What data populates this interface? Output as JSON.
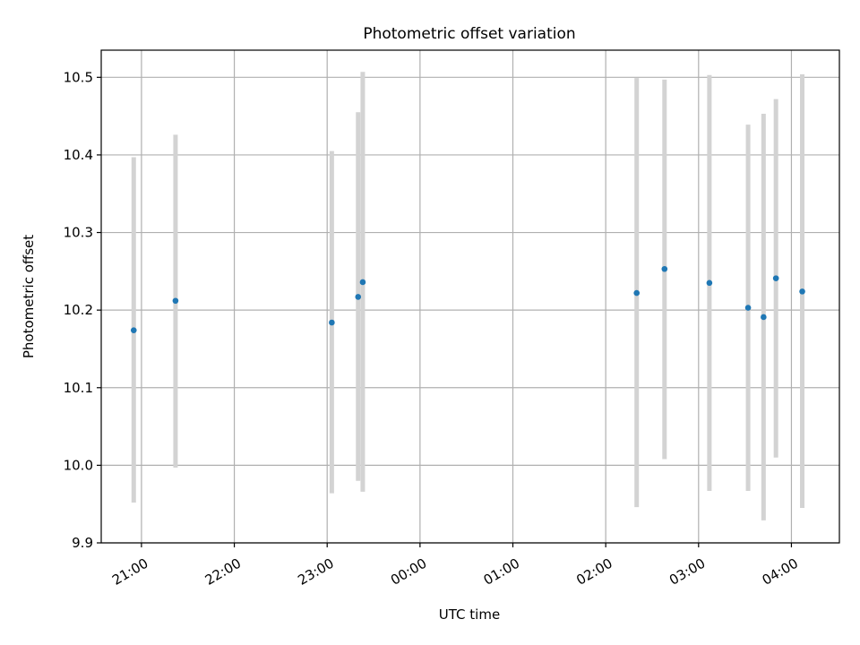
{
  "chart_data": {
    "type": "scatter",
    "title": "Photometric offset variation",
    "xlabel": "UTC time",
    "ylabel": "Photometric offset",
    "x_type": "time",
    "xlim": [
      "20:34",
      "04:31"
    ],
    "ylim": [
      9.9,
      10.535
    ],
    "x_ticks": [
      "21:00",
      "22:00",
      "23:00",
      "00:00",
      "01:00",
      "02:00",
      "03:00",
      "04:00"
    ],
    "y_ticks": [
      "9.9",
      "10.0",
      "10.1",
      "10.2",
      "10.3",
      "10.4",
      "10.5"
    ],
    "grid": true,
    "colors": {
      "point": "#1f77b4",
      "errorbar": "#d3d3d3",
      "grid": "#b0b0b0"
    },
    "points": [
      {
        "time": "20:55",
        "y": 10.174,
        "low": 9.952,
        "high": 10.397
      },
      {
        "time": "21:22",
        "y": 10.212,
        "low": 9.997,
        "high": 10.426
      },
      {
        "time": "23:03",
        "y": 10.184,
        "low": 9.964,
        "high": 10.405
      },
      {
        "time": "23:20",
        "y": 10.217,
        "low": 9.98,
        "high": 10.455
      },
      {
        "time": "23:23",
        "y": 10.236,
        "low": 9.966,
        "high": 10.507
      },
      {
        "time": "02:20",
        "y": 10.222,
        "low": 9.946,
        "high": 10.499
      },
      {
        "time": "02:38",
        "y": 10.253,
        "low": 10.008,
        "high": 10.497
      },
      {
        "time": "03:07",
        "y": 10.235,
        "low": 9.967,
        "high": 10.503
      },
      {
        "time": "03:32",
        "y": 10.203,
        "low": 9.967,
        "high": 10.439
      },
      {
        "time": "03:42",
        "y": 10.191,
        "low": 9.929,
        "high": 10.453
      },
      {
        "time": "03:50",
        "y": 10.241,
        "low": 10.01,
        "high": 10.472
      },
      {
        "time": "04:07",
        "y": 10.224,
        "low": 9.945,
        "high": 10.504
      }
    ]
  }
}
